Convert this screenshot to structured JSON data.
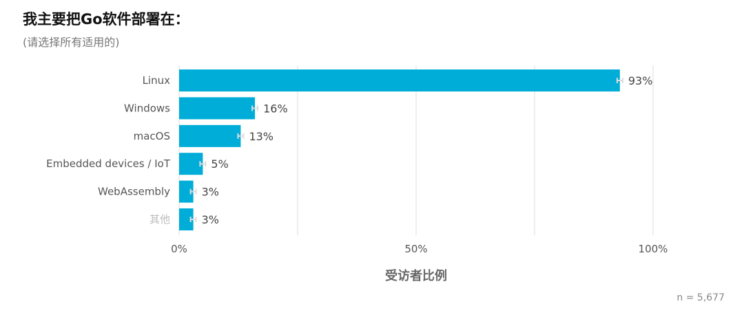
{
  "title": "我主要把Go软件部署在：",
  "subtitle": "(请选择所有适用的)",
  "sample": "n =   5,677",
  "chart_data": {
    "type": "bar",
    "orientation": "horizontal",
    "categories": [
      "Linux",
      "Windows",
      "macOS",
      "Embedded devices / IoT",
      "WebAssembly",
      "其他"
    ],
    "values": [
      93,
      16,
      13,
      5,
      3,
      3
    ],
    "value_labels": [
      "93%",
      "16%",
      "13%",
      "5%",
      "3%",
      "3%"
    ],
    "xlabel": "受访者比例",
    "xlim": [
      0,
      100
    ],
    "xticks": [
      0,
      50,
      100
    ],
    "xtick_labels": [
      "0%",
      "50%",
      "100%"
    ],
    "grid": true,
    "error_bars": true,
    "bar_color": "#00ADD8",
    "error_bar_color": "#dddddd",
    "muted_category_color": "#bbbbbb"
  }
}
